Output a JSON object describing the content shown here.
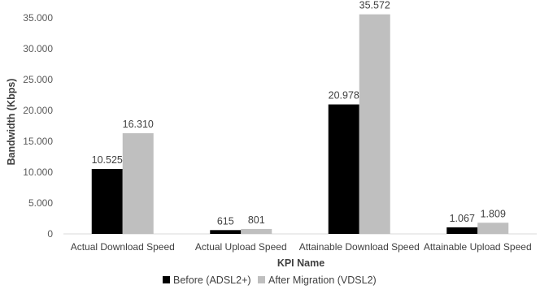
{
  "chart_data": {
    "type": "bar",
    "title": "",
    "xlabel": "KPI Name",
    "ylabel": "Bandwidth (Kbps)",
    "ylim": [
      0,
      35000
    ],
    "yticks": [
      0,
      5000,
      10000,
      15000,
      20000,
      25000,
      30000,
      35000
    ],
    "ytick_labels": [
      "0",
      "5.000",
      "10.000",
      "15.000",
      "20.000",
      "25.000",
      "30.000",
      "35.000"
    ],
    "grid": false,
    "legend_position": "bottom",
    "categories": [
      "Actual Download Speed",
      "Actual Upload Speed",
      "Attainable Download Speed",
      "Attainable Upload Speed"
    ],
    "series": [
      {
        "name": "Before (ADSL2+)",
        "color": "#000000",
        "values": [
          10525,
          615,
          20978,
          1067
        ],
        "labels": [
          "10.525",
          "615",
          "20.978",
          "1.067"
        ]
      },
      {
        "name": "After Migration (VDSL2)",
        "color": "#bfbfbf",
        "values": [
          16310,
          801,
          35572,
          1809
        ],
        "labels": [
          "16.310",
          "801",
          "35.572",
          "1.809"
        ]
      }
    ]
  }
}
